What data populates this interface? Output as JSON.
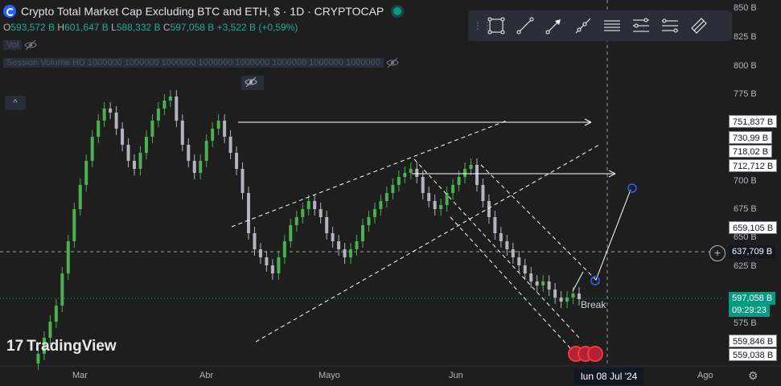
{
  "header": {
    "title": "Crypto Total Market Cap Excluding BTC and ETH, $ · 1D · CRYPTOCAP",
    "ohlc": {
      "o_label": "O",
      "o": "593,572 B",
      "h_label": "H",
      "h": "601,647 B",
      "l_label": "L",
      "l": "588,332 B",
      "c_label": "C",
      "c": "597,058 B",
      "change": "+3,522 B (+0,59%)"
    },
    "indicator1": "Vol",
    "indicator2": "Session Volume HD 1000000 1000000 1000000 1000000 1000000 1000000 1000000 1000000",
    "collapse": "^"
  },
  "toolbar": {
    "grip": "⋮⋮",
    "tools": [
      "rectangle-icon",
      "trend-line-icon",
      "arrow-icon",
      "ray-icon",
      "horizontal-lines-icon",
      "fib-icon",
      "channel-icon",
      "brush-icon"
    ]
  },
  "watermark": {
    "text": "TradingView",
    "logo": "17"
  },
  "price_axis": {
    "labels": [
      "850 B",
      "825 B",
      "800 B",
      "775 B",
      "700 B",
      "675 B",
      "650 B",
      "625 B",
      "575 B"
    ]
  },
  "price_tags": {
    "t751": "751,837 B",
    "t730": "730,99 B",
    "t718": "718,02 B",
    "t712": "712,712 B",
    "t659": "659,105 B",
    "t637": "637,709 B",
    "current": "597,058 B",
    "countdown": "09:29:23",
    "t559a": "559,846 B",
    "t559b": "559,038 B"
  },
  "time_axis": {
    "labels": [
      "Mar",
      "Abr",
      "Mayo",
      "Jun",
      "Ago"
    ],
    "crosshair": "lun 08 Jul '24"
  },
  "annotations": {
    "break": "Break"
  },
  "colors": {
    "bg": "#1e1e1e",
    "up": "#26a69a",
    "up_candle": "#4caf50",
    "down": "#b2b5be",
    "accent": "#2962ff"
  }
}
